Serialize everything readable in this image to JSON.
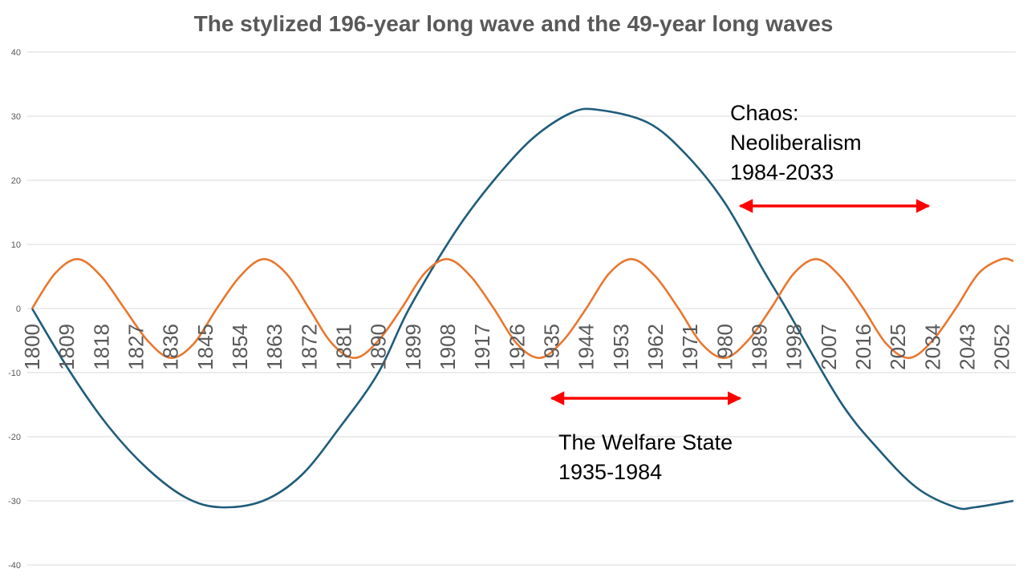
{
  "chart_data": {
    "type": "line",
    "title": "The stylized 196-year long wave and the 49-year long waves",
    "xlabel": "",
    "ylabel": "",
    "ylim": [
      -40,
      40
    ],
    "yticks": [
      "40",
      "30",
      "20",
      "10",
      "0",
      "-10",
      "-20",
      "-30",
      "-40"
    ],
    "ytick_values": [
      40,
      30,
      20,
      10,
      0,
      -10,
      -20,
      -30,
      -40
    ],
    "xlim": [
      1800,
      2055
    ],
    "xticks": [
      "1800",
      "1809",
      "1818",
      "1827",
      "1836",
      "1845",
      "1854",
      "1863",
      "1872",
      "1881",
      "1890",
      "1899",
      "1908",
      "1917",
      "1926",
      "1935",
      "1944",
      "1953",
      "1962",
      "1971",
      "1980",
      "1989",
      "1998",
      "2007",
      "2016",
      "2025",
      "2034",
      "2043",
      "2052"
    ],
    "grid": true,
    "legend": "none",
    "series": [
      {
        "color": "#1f5c7a",
        "x": [
          1800,
          1810,
          1820,
          1830,
          1840,
          1849,
          1860,
          1870,
          1880,
          1890,
          1898,
          1910,
          1920,
          1930,
          1940,
          1947,
          1960,
          1970,
          1980,
          1990,
          1996,
          2010,
          2020,
          2030,
          2040,
          2045,
          2055
        ],
        "values": [
          0,
          -10,
          -18.5,
          -25,
          -29.5,
          -31,
          -30,
          -26,
          -18.5,
          -10,
          0,
          12,
          20,
          26.5,
          30.5,
          31,
          29,
          24,
          16.5,
          6,
          0,
          -14.5,
          -22,
          -28,
          -31,
          -31,
          -30
        ]
      },
      {
        "color": "#e8772e",
        "x": [
          1800,
          1806,
          1812,
          1818,
          1824,
          1830,
          1836,
          1842,
          1848,
          1854,
          1860,
          1866,
          1872,
          1878,
          1884,
          1890,
          1896,
          1902,
          1908,
          1914,
          1920,
          1926,
          1932,
          1938,
          1944,
          1950,
          1956,
          1962,
          1968,
          1974,
          1980,
          1986,
          1992,
          1998,
          2004,
          2010,
          2016,
          2022,
          2028,
          2034,
          2040,
          2046,
          2052,
          2055
        ],
        "values": [
          0,
          5.5,
          7.7,
          5,
          0,
          -5,
          -7.7,
          -5.5,
          0,
          5,
          7.7,
          5.5,
          0,
          -5.5,
          -7.7,
          -5,
          0,
          5.5,
          7.7,
          5,
          0,
          -5.5,
          -7.7,
          -5,
          0,
          5.5,
          7.7,
          5,
          0,
          -5.5,
          -7.7,
          -5,
          0,
          5.5,
          7.7,
          5,
          0,
          -5.5,
          -7.7,
          -5,
          0,
          5.5,
          7.7,
          7.4
        ]
      }
    ],
    "annotations": [
      {
        "lines": [
          "Chaos:",
          "Neoliberalism",
          "1984-2033"
        ],
        "arrow_color": "#ff0000",
        "arrow_from_year": 1984,
        "arrow_to_year": 2033,
        "arrow_y": 16
      },
      {
        "lines": [
          "The Welfare State",
          "1935-1984"
        ],
        "arrow_color": "#ff0000",
        "arrow_from_year": 1935,
        "arrow_to_year": 1984,
        "arrow_y": -14
      }
    ]
  }
}
